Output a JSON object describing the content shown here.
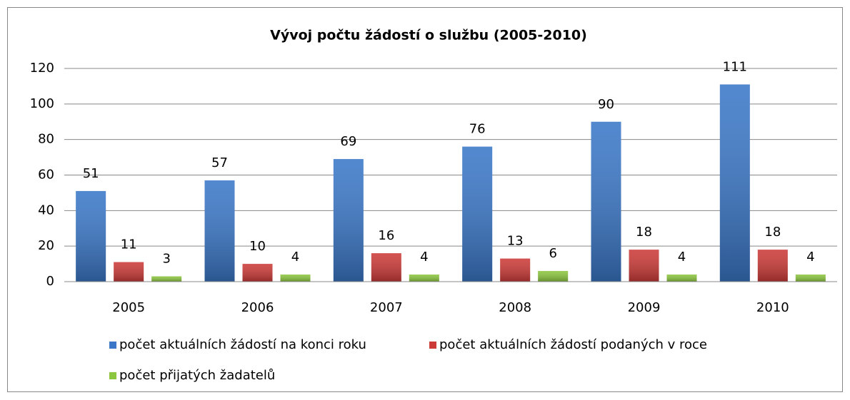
{
  "chart_data": {
    "type": "bar",
    "title": "Vývoj počtu žádostí o službu (2005-2010)",
    "categories": [
      "2005",
      "2006",
      "2007",
      "2008",
      "2009",
      "2010"
    ],
    "series": [
      {
        "name": "počet aktuálních žádostí na konci roku",
        "color": "#3b78c8",
        "values": [
          51,
          57,
          69,
          76,
          90,
          111
        ]
      },
      {
        "name": "počet aktuálních žádostí podaných v roce",
        "color": "#cc3b38",
        "values": [
          11,
          10,
          16,
          13,
          18,
          18
        ]
      },
      {
        "name": "počet přijatých žadatelů",
        "color": "#8cc63f",
        "values": [
          3,
          4,
          4,
          6,
          4,
          4
        ]
      }
    ],
    "ylim": [
      0,
      120
    ],
    "yticks": [
      0,
      20,
      40,
      60,
      80,
      100,
      120
    ],
    "grid": true,
    "legend": "bottom"
  }
}
